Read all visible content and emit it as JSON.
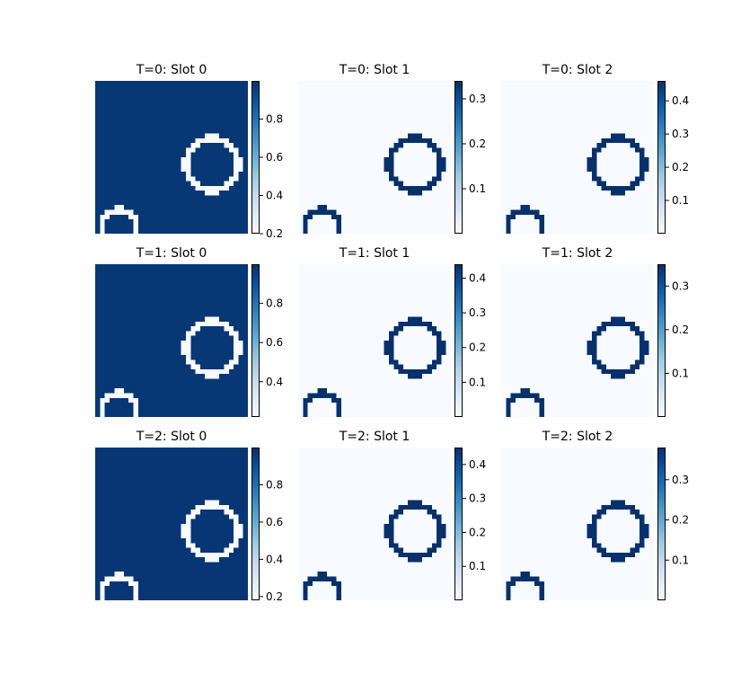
{
  "figure": {
    "panels": [
      {
        "title": "T=0: Slot 0",
        "colorbar": {
          "range": [
            0.2,
            1.0
          ],
          "ticks": [
            0.2,
            0.4,
            0.6,
            0.8
          ]
        },
        "mode": "background",
        "background_value": 0.98,
        "ring_value": 0.2
      },
      {
        "title": "T=0: Slot 1",
        "colorbar": {
          "range": [
            0.0,
            0.34
          ],
          "ticks": [
            0.1,
            0.2,
            0.3
          ]
        },
        "mode": "ring",
        "background_value": 0.0,
        "ring_value": 0.34
      },
      {
        "title": "T=0: Slot 2",
        "colorbar": {
          "range": [
            0.0,
            0.46
          ],
          "ticks": [
            0.1,
            0.2,
            0.3,
            0.4
          ]
        },
        "mode": "ring",
        "background_value": 0.0,
        "ring_value": 0.46
      },
      {
        "title": "T=1: Slot 0",
        "colorbar": {
          "range": [
            0.22,
            1.0
          ],
          "ticks": [
            0.4,
            0.6,
            0.8
          ]
        },
        "mode": "background",
        "background_value": 0.98,
        "ring_value": 0.22
      },
      {
        "title": "T=1: Slot 1",
        "colorbar": {
          "range": [
            0.0,
            0.44
          ],
          "ticks": [
            0.1,
            0.2,
            0.3,
            0.4
          ]
        },
        "mode": "ring",
        "background_value": 0.0,
        "ring_value": 0.44
      },
      {
        "title": "T=1: Slot 2",
        "colorbar": {
          "range": [
            0.0,
            0.35
          ],
          "ticks": [
            0.1,
            0.2,
            0.3
          ]
        },
        "mode": "ring",
        "background_value": 0.0,
        "ring_value": 0.35
      },
      {
        "title": "T=2: Slot 0",
        "colorbar": {
          "range": [
            0.18,
            1.0
          ],
          "ticks": [
            0.2,
            0.4,
            0.6,
            0.8
          ]
        },
        "mode": "background",
        "background_value": 0.98,
        "ring_value": 0.18
      },
      {
        "title": "T=2: Slot 1",
        "colorbar": {
          "range": [
            0.0,
            0.45
          ],
          "ticks": [
            0.1,
            0.2,
            0.3,
            0.4
          ]
        },
        "mode": "ring",
        "background_value": 0.0,
        "ring_value": 0.45
      },
      {
        "title": "T=2: Slot 2",
        "colorbar": {
          "range": [
            0.0,
            0.38
          ],
          "ticks": [
            0.1,
            0.2,
            0.3
          ]
        },
        "mode": "ring",
        "background_value": 0.0,
        "ring_value": 0.38
      }
    ]
  },
  "chart_data": {
    "type": "heatmap",
    "colormap": "Blues",
    "grid_size": [
      32,
      32
    ],
    "rows": [
      "T=0",
      "T=1",
      "T=2"
    ],
    "columns": [
      "Slot 0",
      "Slot 1",
      "Slot 2"
    ],
    "shapes": [
      {
        "name": "large-ring",
        "center": [
          24.5,
          17.5
        ],
        "radius": 5.5
      },
      {
        "name": "small-ring",
        "center": [
          5.0,
          30.5
        ],
        "radius": 3.6
      }
    ]
  }
}
